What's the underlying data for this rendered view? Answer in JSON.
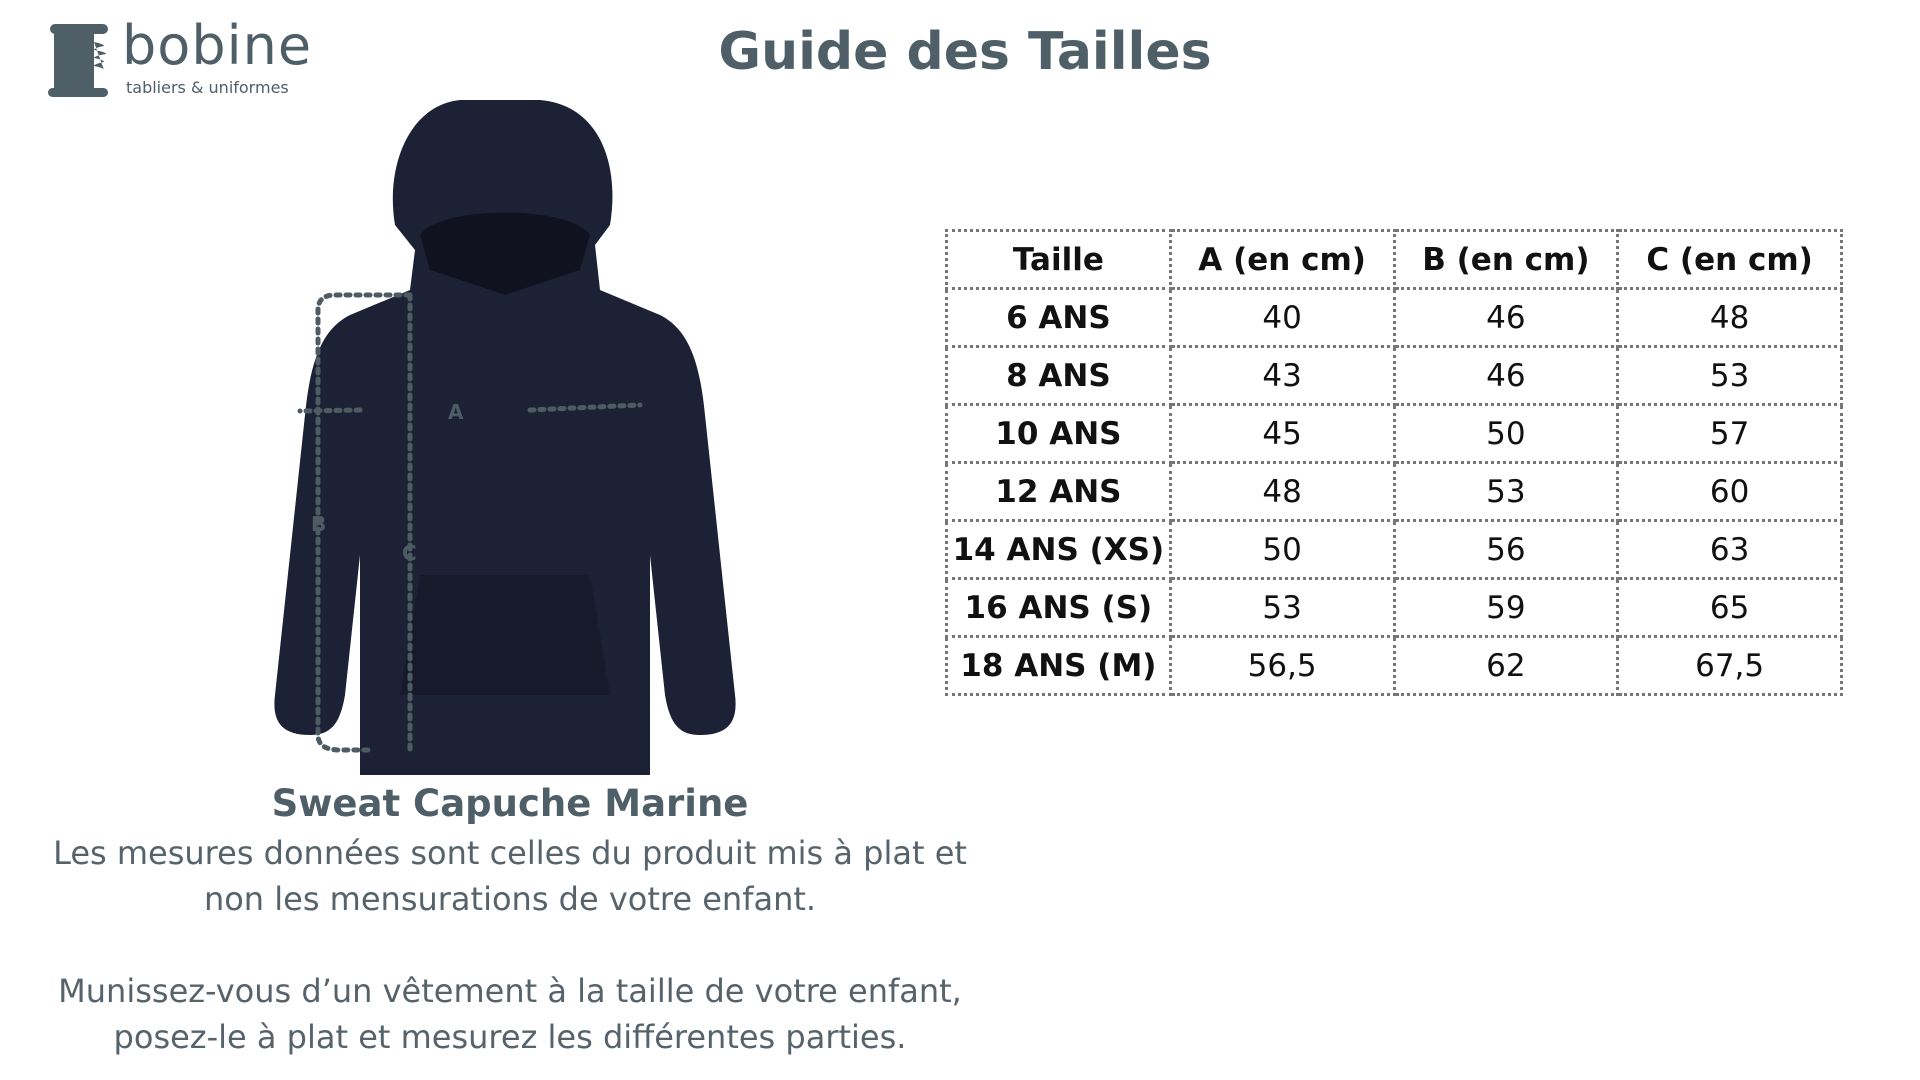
{
  "logo": {
    "name": "bobine",
    "tagline": "tabliers & uniformes",
    "color": "#4f5f68"
  },
  "title": "Guide des Tailles",
  "product": {
    "name": "Sweat Capuche Marine",
    "color": "#1c2136",
    "labels": {
      "a": "A",
      "b": "B",
      "c": "C"
    }
  },
  "notes": {
    "line1": "Les mesures données sont celles du produit mis à plat et",
    "line2": "non les mensurations de votre enfant.",
    "line3": "Munissez-vous d’un vêtement à la taille de votre enfant,",
    "line4": "posez-le à plat et mesurez les différentes parties."
  },
  "table": {
    "headers": [
      "Taille",
      "A (en cm)",
      "B (en cm)",
      "C (en cm)"
    ],
    "rows": [
      [
        "6 ANS",
        "40",
        "46",
        "48"
      ],
      [
        "8 ANS",
        "43",
        "46",
        "53"
      ],
      [
        "10 ANS",
        "45",
        "50",
        "57"
      ],
      [
        "12 ANS",
        "48",
        "53",
        "60"
      ],
      [
        "14 ANS (XS)",
        "50",
        "56",
        "63"
      ],
      [
        "16 ANS (S)",
        "53",
        "59",
        "65"
      ],
      [
        "18 ANS (M)",
        "56,5",
        "62",
        "67,5"
      ]
    ]
  }
}
